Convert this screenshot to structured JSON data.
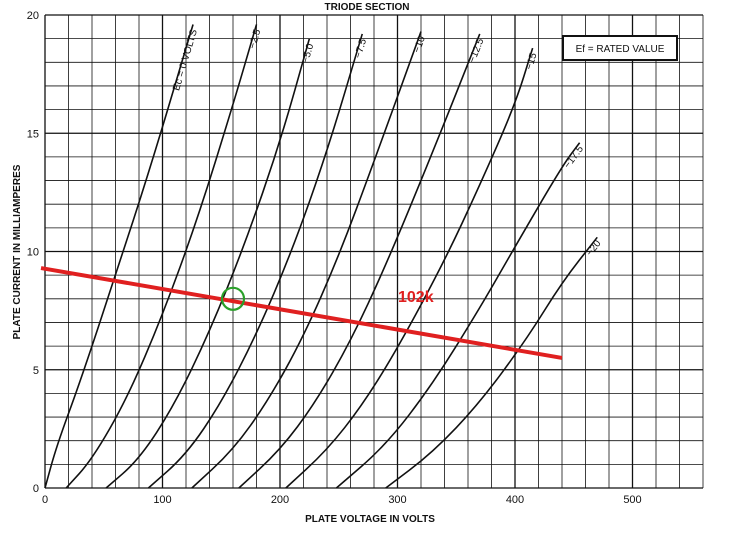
{
  "chart_data": {
    "type": "line",
    "title": "TRIODE SECTION",
    "xlabel": "PLATE VOLTAGE IN VOLTS",
    "ylabel": "PLATE CURRENT IN MILLIAMPERES",
    "xlim": [
      0,
      560
    ],
    "ylim": [
      0,
      20
    ],
    "x_ticks": [
      0,
      100,
      200,
      300,
      400,
      500
    ],
    "y_ticks": [
      0,
      5,
      10,
      15,
      20
    ],
    "grid": true,
    "grid_minor_x": 20,
    "grid_minor_y": 1,
    "annotation_box": "Ef = RATED VALUE",
    "series": [
      {
        "name": "Ec = 0 VOLTS",
        "points": [
          [
            0,
            0
          ],
          [
            10,
            1.8
          ],
          [
            30,
            4.5
          ],
          [
            60,
            9
          ],
          [
            90,
            13.6
          ],
          [
            120,
            18.6
          ],
          [
            126,
            19.6
          ]
        ]
      },
      {
        "name": "−2.5",
        "points": [
          [
            18,
            0
          ],
          [
            40,
            1.2
          ],
          [
            70,
            3.8
          ],
          [
            100,
            7.3
          ],
          [
            130,
            11.4
          ],
          [
            160,
            16.2
          ],
          [
            180,
            19.6
          ]
        ]
      },
      {
        "name": "−5.0",
        "points": [
          [
            52,
            0
          ],
          [
            80,
            1.2
          ],
          [
            110,
            3.5
          ],
          [
            140,
            6.6
          ],
          [
            170,
            10.3
          ],
          [
            200,
            14.6
          ],
          [
            225,
            19
          ]
        ]
      },
      {
        "name": "−7.5",
        "points": [
          [
            88,
            0
          ],
          [
            120,
            1.4
          ],
          [
            150,
            3.6
          ],
          [
            180,
            6.5
          ],
          [
            210,
            10
          ],
          [
            240,
            14.2
          ],
          [
            270,
            19.2
          ]
        ]
      },
      {
        "name": "−10",
        "points": [
          [
            125,
            0
          ],
          [
            160,
            1.6
          ],
          [
            190,
            3.7
          ],
          [
            220,
            6.4
          ],
          [
            250,
            9.8
          ],
          [
            280,
            13.8
          ],
          [
            320,
            19.3
          ]
        ]
      },
      {
        "name": "−12.5",
        "points": [
          [
            165,
            0
          ],
          [
            200,
            1.6
          ],
          [
            230,
            3.6
          ],
          [
            260,
            6.2
          ],
          [
            290,
            9.4
          ],
          [
            330,
            14.2
          ],
          [
            370,
            19.2
          ]
        ]
      },
      {
        "name": "−15",
        "points": [
          [
            205,
            0
          ],
          [
            240,
            1.6
          ],
          [
            270,
            3.5
          ],
          [
            300,
            5.9
          ],
          [
            340,
            9.6
          ],
          [
            370,
            12.8
          ],
          [
            400,
            16.2
          ],
          [
            415,
            18.6
          ]
        ]
      },
      {
        "name": "−17.5",
        "points": [
          [
            248,
            0
          ],
          [
            290,
            1.8
          ],
          [
            330,
            4.4
          ],
          [
            370,
            7.6
          ],
          [
            400,
            10.2
          ],
          [
            440,
            13.6
          ],
          [
            455,
            14.6
          ]
        ]
      },
      {
        "name": "−20",
        "points": [
          [
            290,
            0
          ],
          [
            330,
            1.5
          ],
          [
            370,
            3.6
          ],
          [
            410,
            6.3
          ],
          [
            440,
            8.7
          ],
          [
            470,
            10.6
          ]
        ]
      }
    ],
    "load_line": {
      "label": "102k",
      "points": [
        [
          0,
          9.3
        ],
        [
          440,
          5.5
        ]
      ],
      "color": "#e02020"
    },
    "operating_point": {
      "x": 160,
      "y": 8.0,
      "color": "#2aa02a"
    }
  }
}
